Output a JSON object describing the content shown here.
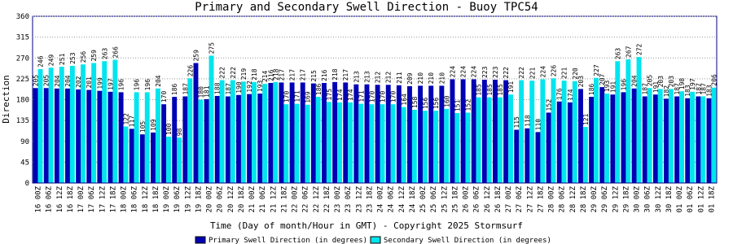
{
  "chart_data": {
    "type": "bar",
    "title": "Primary and Secondary Swell Direction - Buoy TPC54",
    "x_label": "Time (Day of month/Hour in GMT) - Copyright 2025 Stormsurf",
    "y_label": "Direction",
    "categories": [
      "16 00Z",
      "16 06Z",
      "16 12Z",
      "16 18Z",
      "17 00Z",
      "17 06Z",
      "17 12Z",
      "17 18Z",
      "18 00Z",
      "18 06Z",
      "18 12Z",
      "18 18Z",
      "19 00Z",
      "19 06Z",
      "19 12Z",
      "19 18Z",
      "20 00Z",
      "20 06Z",
      "20 12Z",
      "20 18Z",
      "21 00Z",
      "21 06Z",
      "21 12Z",
      "21 18Z",
      "22 00Z",
      "22 06Z",
      "22 12Z",
      "22 18Z",
      "23 00Z",
      "23 06Z",
      "23 12Z",
      "23 18Z",
      "24 00Z",
      "24 06Z",
      "24 12Z",
      "24 18Z",
      "25 00Z",
      "25 06Z",
      "25 12Z",
      "25 18Z",
      "26 00Z",
      "26 06Z",
      "26 12Z",
      "26 18Z",
      "27 00Z",
      "27 06Z",
      "27 12Z",
      "27 18Z",
      "28 00Z",
      "28 06Z",
      "28 12Z",
      "28 18Z",
      "29 00Z",
      "29 06Z",
      "29 12Z",
      "29 18Z",
      "30 00Z",
      "30 06Z",
      "30 12Z",
      "30 18Z",
      "01 00Z",
      "01 06Z",
      "01 12Z",
      "01 18Z"
    ],
    "series": [
      {
        "name": "Primary Swell Direction (in degrees)",
        "color": "#0000b4",
        "values": [
          205,
          205,
          204,
          204,
          202,
          201,
          199,
          197,
          196,
          117,
          105,
          109,
          170,
          186,
          187,
          259,
          181,
          188,
          187,
          190,
          192,
          193,
          216,
          217,
          217,
          217,
          215,
          216,
          218,
          217,
          213,
          213,
          212,
          212,
          211,
          209,
          210,
          210,
          210,
          224,
          224,
          224,
          223,
          223,
          222,
          115,
          118,
          110,
          152,
          176,
          174,
          203,
          186,
          207,
          191,
          196,
          204,
          187,
          191,
          182,
          187,
          183,
          187,
          183
        ]
      },
      {
        "name": "Secondary Swell Direction (in degrees)",
        "color": "#00e5ee",
        "values": [
          246,
          249,
          251,
          253,
          256,
          259,
          263,
          266,
          122,
          196,
          196,
          204,
          100,
          98,
          226,
          180,
          275,
          222,
          222,
          219,
          218,
          214,
          218,
          170,
          171,
          169,
          186,
          175,
          174,
          174,
          171,
          170,
          170,
          170,
          164,
          158,
          156,
          156,
          160,
          151,
          152,
          185,
          185,
          185,
          191,
          222,
          221,
          224,
          226,
          221,
          220,
          121,
          227,
          193,
          263,
          267,
          272,
          205,
          203,
          203,
          198,
          197,
          187,
          206
        ]
      }
    ],
    "ylim": [
      0,
      360
    ],
    "yticks": [
      0,
      45,
      90,
      135,
      180,
      225,
      270,
      315,
      360
    ],
    "grid": true
  }
}
